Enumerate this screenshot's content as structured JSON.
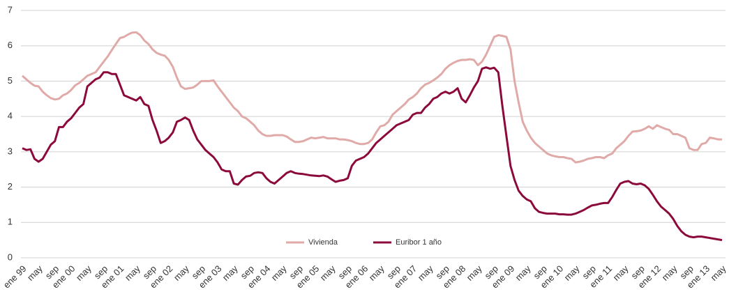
{
  "chart_data": {
    "type": "line",
    "categories": [
      "ene 99",
      null,
      null,
      null,
      "may",
      null,
      null,
      null,
      "sep",
      null,
      null,
      null,
      "ene 00",
      null,
      null,
      null,
      "may",
      null,
      null,
      null,
      "sep",
      null,
      null,
      null,
      "ene 01",
      null,
      null,
      null,
      "may",
      null,
      null,
      null,
      "sep",
      null,
      null,
      null,
      "ene 02",
      null,
      null,
      null,
      "may",
      null,
      null,
      null,
      "sep",
      null,
      null,
      null,
      "ene 03",
      null,
      null,
      null,
      "may",
      null,
      null,
      null,
      "sep",
      null,
      null,
      null,
      "ene 04",
      null,
      null,
      null,
      "may",
      null,
      null,
      null,
      "sep",
      null,
      null,
      null,
      "ene 05",
      null,
      null,
      null,
      "may",
      null,
      null,
      null,
      "sep",
      null,
      null,
      null,
      "ene 06",
      null,
      null,
      null,
      "may",
      null,
      null,
      null,
      "sep",
      null,
      null,
      null,
      "ene 07",
      null,
      null,
      null,
      "may",
      null,
      null,
      null,
      "sep",
      null,
      null,
      null,
      "ene 08",
      null,
      null,
      null,
      "may",
      null,
      null,
      null,
      "sep",
      null,
      null,
      null,
      "ene 09",
      null,
      null,
      null,
      "may",
      null,
      null,
      null,
      "sep",
      null,
      null,
      null,
      "ene 10",
      null,
      null,
      null,
      "may",
      null,
      null,
      null,
      "sep",
      null,
      null,
      null,
      "ene 11",
      null,
      null,
      null,
      "may",
      null,
      null,
      null,
      "sep",
      null,
      null,
      null,
      "ene 12",
      null,
      null,
      null,
      "may",
      null,
      null,
      null,
      "sep",
      null,
      null,
      null,
      "ene 13",
      null,
      null,
      null,
      "may"
    ],
    "series": [
      {
        "name": "Vivienda",
        "color": "#dfaaa7",
        "values": [
          5.15,
          5.05,
          4.95,
          4.87,
          4.85,
          4.7,
          4.6,
          4.52,
          4.48,
          4.5,
          4.6,
          4.65,
          4.75,
          4.88,
          4.95,
          5.05,
          5.15,
          5.2,
          5.25,
          5.4,
          5.55,
          5.7,
          5.88,
          6.05,
          6.22,
          6.25,
          6.32,
          6.37,
          6.38,
          6.3,
          6.15,
          6.05,
          5.9,
          5.8,
          5.75,
          5.72,
          5.6,
          5.4,
          5.1,
          4.85,
          4.78,
          4.8,
          4.82,
          4.9,
          5.0,
          5.0,
          5.0,
          5.02,
          4.85,
          4.7,
          4.55,
          4.4,
          4.25,
          4.15,
          4.0,
          3.95,
          3.85,
          3.75,
          3.6,
          3.5,
          3.45,
          3.45,
          3.47,
          3.47,
          3.47,
          3.43,
          3.35,
          3.28,
          3.28,
          3.3,
          3.35,
          3.4,
          3.38,
          3.4,
          3.42,
          3.38,
          3.38,
          3.38,
          3.35,
          3.35,
          3.33,
          3.3,
          3.25,
          3.22,
          3.22,
          3.25,
          3.35,
          3.55,
          3.72,
          3.75,
          3.85,
          4.05,
          4.15,
          4.25,
          4.35,
          4.48,
          4.55,
          4.65,
          4.8,
          4.9,
          4.95,
          5.02,
          5.1,
          5.2,
          5.35,
          5.45,
          5.52,
          5.57,
          5.6,
          5.6,
          5.62,
          5.6,
          5.45,
          5.55,
          5.75,
          6.0,
          6.25,
          6.3,
          6.28,
          6.25,
          5.9,
          5.0,
          4.4,
          3.85,
          3.6,
          3.4,
          3.25,
          3.15,
          3.05,
          2.95,
          2.9,
          2.87,
          2.85,
          2.85,
          2.82,
          2.8,
          2.7,
          2.72,
          2.75,
          2.8,
          2.82,
          2.85,
          2.85,
          2.82,
          2.9,
          2.95,
          3.1,
          3.2,
          3.3,
          3.45,
          3.57,
          3.58,
          3.6,
          3.65,
          3.72,
          3.65,
          3.75,
          3.7,
          3.65,
          3.62,
          3.5,
          3.5,
          3.45,
          3.4,
          3.1,
          3.05,
          3.05,
          3.22,
          3.25,
          3.4,
          3.38,
          3.35,
          3.35
        ]
      },
      {
        "name": "Euribor 1 año",
        "color": "#8c0a3b",
        "values": [
          3.1,
          3.05,
          3.07,
          2.8,
          2.72,
          2.8,
          3.0,
          3.2,
          3.3,
          3.7,
          3.7,
          3.85,
          3.95,
          4.1,
          4.25,
          4.35,
          4.85,
          4.95,
          5.05,
          5.1,
          5.25,
          5.25,
          5.2,
          5.2,
          4.9,
          4.6,
          4.55,
          4.5,
          4.45,
          4.55,
          4.35,
          4.3,
          3.9,
          3.6,
          3.25,
          3.3,
          3.4,
          3.55,
          3.85,
          3.9,
          3.97,
          3.9,
          3.6,
          3.35,
          3.2,
          3.05,
          2.95,
          2.85,
          2.7,
          2.5,
          2.45,
          2.45,
          2.1,
          2.07,
          2.2,
          2.3,
          2.32,
          2.4,
          2.42,
          2.4,
          2.25,
          2.15,
          2.1,
          2.2,
          2.3,
          2.4,
          2.45,
          2.4,
          2.38,
          2.37,
          2.35,
          2.33,
          2.32,
          2.31,
          2.33,
          2.3,
          2.22,
          2.15,
          2.18,
          2.2,
          2.25,
          2.6,
          2.75,
          2.8,
          2.85,
          2.95,
          3.1,
          3.25,
          3.35,
          3.45,
          3.55,
          3.65,
          3.75,
          3.8,
          3.85,
          3.9,
          4.05,
          4.1,
          4.1,
          4.25,
          4.35,
          4.5,
          4.55,
          4.65,
          4.7,
          4.65,
          4.7,
          4.8,
          4.5,
          4.4,
          4.6,
          4.82,
          5.0,
          5.35,
          5.39,
          5.35,
          5.38,
          5.25,
          4.3,
          3.45,
          2.6,
          2.2,
          1.9,
          1.75,
          1.65,
          1.6,
          1.4,
          1.3,
          1.27,
          1.25,
          1.25,
          1.25,
          1.23,
          1.23,
          1.22,
          1.22,
          1.25,
          1.3,
          1.35,
          1.42,
          1.48,
          1.5,
          1.53,
          1.55,
          1.55,
          1.72,
          1.92,
          2.1,
          2.15,
          2.17,
          2.1,
          2.08,
          2.1,
          2.05,
          1.95,
          1.78,
          1.6,
          1.45,
          1.35,
          1.25,
          1.1,
          0.9,
          0.75,
          0.65,
          0.6,
          0.58,
          0.6,
          0.6,
          0.58,
          0.56,
          0.54,
          0.52,
          0.5
        ]
      }
    ],
    "ylim": [
      0,
      7
    ],
    "yticks": [
      0,
      1,
      2,
      3,
      4,
      5,
      6,
      7
    ],
    "grid": true,
    "legend": "bottom"
  }
}
